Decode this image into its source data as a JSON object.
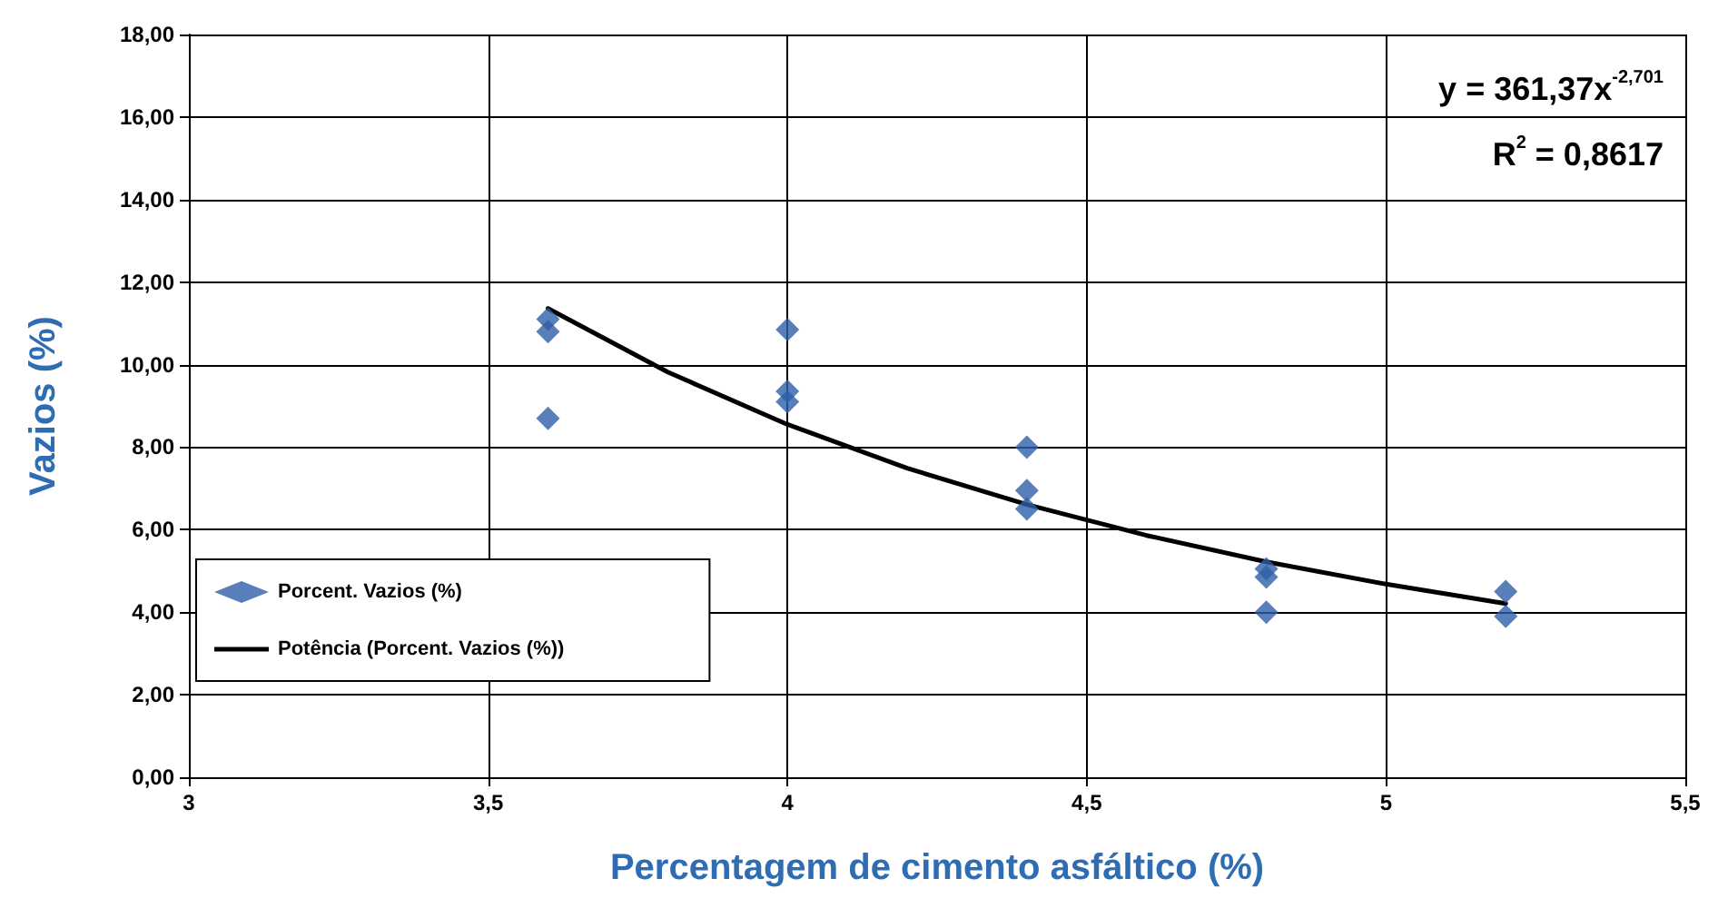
{
  "chart_data": {
    "type": "scatter",
    "xlabel": "Percentagem de cimento asfáltico (%)",
    "ylabel": "Vazios (%)",
    "xlim": [
      3,
      5.5
    ],
    "xticks": [
      3,
      {
        "value": 3.5,
        "label": "3,5"
      },
      4,
      {
        "value": 4.5,
        "label": "4,5"
      },
      5,
      {
        "value": 5.5,
        "label": "5,5"
      }
    ],
    "ylim": [
      0,
      18
    ],
    "yticks": [
      {
        "value": 0,
        "label": "0,00"
      },
      {
        "value": 2,
        "label": "2,00"
      },
      {
        "value": 4,
        "label": "4,00"
      },
      {
        "value": 6,
        "label": "6,00"
      },
      {
        "value": 8,
        "label": "8,00"
      },
      {
        "value": 10,
        "label": "10,00"
      },
      {
        "value": 12,
        "label": "12,00"
      },
      {
        "value": 14,
        "label": "14,00"
      },
      {
        "value": 16,
        "label": "16,00"
      },
      {
        "value": 18,
        "label": "18,00"
      }
    ],
    "grid": true,
    "legend": "left",
    "series": [
      {
        "name": "Porcent. Vazios (%)",
        "marker": "diamond",
        "color": "#2e5fa8",
        "x": [
          3.6,
          3.6,
          3.6,
          4,
          4,
          4,
          4.4,
          4.4,
          4.4,
          4.8,
          4.8,
          4.8,
          5.2,
          5.2
        ],
        "values": [
          11.1,
          10.8,
          8.7,
          10.85,
          9.35,
          9.1,
          8.0,
          6.95,
          6.5,
          5.05,
          4.85,
          4.0,
          4.5,
          3.9
        ]
      },
      {
        "name": "Potência (Porcent. Vazios (%))",
        "type": "line",
        "marker": "none",
        "line_style": "solid",
        "color": "#000000",
        "x": [
          3.6,
          3.8,
          4.0,
          4.2,
          4.4,
          4.6,
          4.8,
          5.0,
          5.2
        ],
        "values": [
          11.36,
          9.82,
          8.55,
          7.49,
          6.61,
          5.86,
          5.22,
          4.68,
          4.21
        ]
      }
    ],
    "annotations": [
      "y = 361,37x$^{-2,701}$",
      "R$^{2}$ = 0,8617"
    ]
  }
}
